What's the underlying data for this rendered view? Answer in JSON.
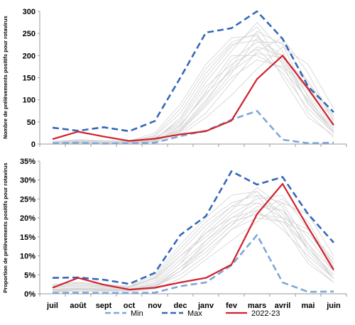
{
  "chart_data": [
    {
      "type": "line",
      "categories": [
        "juil",
        "août",
        "sept",
        "oct",
        "nov",
        "dec",
        "janv",
        "fev",
        "mars",
        "avril",
        "mai",
        "juin"
      ],
      "ylabel": "Nombre de prélèvements positifs  pour rotavirus",
      "ylim": [
        0,
        300
      ],
      "yticks": [
        0,
        50,
        100,
        150,
        200,
        250,
        300
      ],
      "ytick_labels": [
        "0",
        "50",
        "100",
        "150",
        "200",
        "250",
        "300"
      ],
      "grid": false,
      "series": [
        {
          "name": "Min",
          "color": "#7fa7d9",
          "style": "dashed",
          "values": [
            2,
            3,
            1,
            2,
            3,
            18,
            30,
            55,
            75,
            10,
            2,
            3
          ]
        },
        {
          "name": "Max",
          "color": "#3568b8",
          "style": "dashed",
          "values": [
            37,
            30,
            38,
            29,
            52,
            150,
            252,
            262,
            300,
            238,
            130,
            72
          ]
        },
        {
          "name": "2022-23",
          "color": "#d0202a",
          "style": "solid",
          "values": [
            11,
            28,
            17,
            7,
            12,
            22,
            29,
            53,
            147,
            200,
            125,
            43
          ]
        }
      ],
      "background_series": [
        [
          1,
          3,
          2,
          2,
          5,
          30,
          90,
          160,
          240,
          200,
          90,
          25
        ],
        [
          2,
          4,
          3,
          3,
          10,
          60,
          150,
          220,
          265,
          180,
          70,
          15
        ],
        [
          5,
          8,
          6,
          5,
          15,
          45,
          110,
          190,
          230,
          230,
          140,
          60
        ],
        [
          3,
          5,
          4,
          4,
          8,
          25,
          70,
          140,
          210,
          240,
          160,
          50
        ],
        [
          4,
          6,
          5,
          6,
          20,
          80,
          170,
          230,
          250,
          150,
          60,
          20
        ],
        [
          2,
          3,
          3,
          3,
          6,
          40,
          120,
          200,
          200,
          170,
          100,
          35
        ],
        [
          6,
          10,
          8,
          7,
          25,
          90,
          180,
          240,
          245,
          190,
          110,
          40
        ],
        [
          1,
          2,
          2,
          2,
          4,
          20,
          60,
          110,
          170,
          220,
          180,
          80
        ],
        [
          3,
          4,
          4,
          4,
          12,
          55,
          140,
          210,
          275,
          210,
          90,
          30
        ],
        [
          2,
          5,
          3,
          3,
          9,
          35,
          100,
          170,
          220,
          200,
          120,
          45
        ],
        [
          4,
          7,
          5,
          5,
          14,
          50,
          130,
          180,
          215,
          160,
          80,
          25
        ],
        [
          2,
          3,
          2,
          2,
          7,
          28,
          85,
          150,
          190,
          175,
          130,
          55
        ],
        [
          5,
          9,
          6,
          6,
          18,
          70,
          160,
          225,
          235,
          185,
          95,
          30
        ],
        [
          3,
          6,
          4,
          4,
          11,
          42,
          115,
          165,
          205,
          195,
          140,
          65
        ],
        [
          2,
          4,
          3,
          3,
          8,
          32,
          95,
          175,
          255,
          225,
          105,
          28
        ]
      ]
    },
    {
      "type": "line",
      "categories": [
        "juil",
        "août",
        "sept",
        "oct",
        "nov",
        "dec",
        "janv",
        "fev",
        "mars",
        "avril",
        "mai",
        "juin"
      ],
      "ylabel": "Proportion de prélèvements positifs  pour rotavirus",
      "ylim": [
        0,
        35
      ],
      "yticks": [
        0,
        5,
        10,
        15,
        20,
        25,
        30,
        35
      ],
      "ytick_labels": [
        "0%",
        "5%",
        "10%",
        "15%",
        "20%",
        "25%",
        "30%",
        "35%"
      ],
      "grid": false,
      "series": [
        {
          "name": "Min",
          "color": "#7fa7d9",
          "style": "dashed",
          "values": [
            0.2,
            0.3,
            0.2,
            0.2,
            0.3,
            2.0,
            3.0,
            7.5,
            15.5,
            3.0,
            0.5,
            0.6
          ]
        },
        {
          "name": "Max",
          "color": "#3568b8",
          "style": "dashed",
          "values": [
            4.2,
            4.3,
            3.7,
            2.6,
            5.5,
            15.5,
            20.5,
            32.3,
            28.8,
            30.8,
            21.0,
            13.5
          ]
        },
        {
          "name": "2022-23",
          "color": "#d0202a",
          "style": "solid",
          "values": [
            1.6,
            4.2,
            2.4,
            1.1,
            1.6,
            3.0,
            4.2,
            7.7,
            21.0,
            29.0,
            17.5,
            6.3
          ]
        }
      ],
      "background_series": [
        [
          0.5,
          1.0,
          0.8,
          0.8,
          1.5,
          6,
          14,
          20,
          24,
          22,
          12,
          4
        ],
        [
          1.0,
          1.5,
          1.2,
          1.0,
          2.5,
          8,
          17,
          23,
          27,
          20,
          9,
          3
        ],
        [
          2.0,
          2.5,
          2.0,
          1.8,
          4.0,
          10,
          15,
          21,
          25,
          26,
          17,
          8
        ],
        [
          0.8,
          1.2,
          1.0,
          0.9,
          2.0,
          5,
          10,
          17,
          22,
          25,
          19,
          7
        ],
        [
          1.5,
          2.0,
          1.5,
          1.5,
          4.5,
          12,
          19,
          24,
          26,
          18,
          8,
          3
        ],
        [
          0.6,
          1.0,
          0.9,
          0.8,
          1.8,
          7,
          13,
          19,
          21,
          19,
          12,
          5
        ],
        [
          2.5,
          3.0,
          2.5,
          2.0,
          5.0,
          13,
          20,
          26,
          27,
          21,
          13,
          6
        ],
        [
          0.4,
          0.7,
          0.6,
          0.5,
          1.2,
          4,
          9,
          14,
          19,
          24,
          21,
          10
        ],
        [
          1.2,
          1.6,
          1.3,
          1.2,
          3.0,
          9,
          16,
          22,
          28,
          23,
          11,
          4
        ],
        [
          0.9,
          1.4,
          1.1,
          1.0,
          2.2,
          7,
          12,
          18,
          23,
          22,
          15,
          6
        ],
        [
          1.8,
          2.2,
          1.8,
          1.6,
          3.5,
          10,
          16,
          20,
          22,
          17,
          10,
          4
        ],
        [
          0.7,
          1.1,
          0.9,
          0.8,
          1.6,
          6,
          11,
          17,
          20,
          19,
          16,
          8
        ],
        [
          2.2,
          2.8,
          2.2,
          2.0,
          4.2,
          11,
          18,
          23,
          24,
          20,
          12,
          5
        ],
        [
          1.1,
          1.5,
          1.2,
          1.1,
          2.6,
          8,
          14,
          19,
          21,
          20,
          17,
          9
        ],
        [
          0.8,
          1.3,
          1.0,
          0.9,
          2.0,
          6,
          12,
          18,
          26,
          24,
          13,
          4
        ]
      ]
    }
  ],
  "legend": [
    {
      "label": "Min",
      "color": "#7fa7d9",
      "style": "dashed"
    },
    {
      "label": "Max",
      "color": "#3568b8",
      "style": "dashed"
    },
    {
      "label": "2022-23",
      "color": "#d0202a",
      "style": "solid"
    }
  ]
}
